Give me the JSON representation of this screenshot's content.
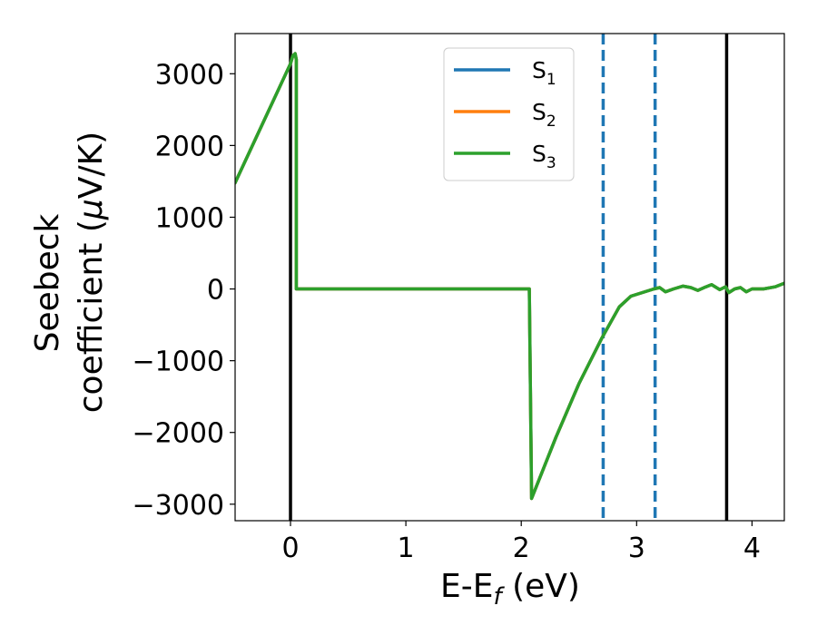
{
  "chart_data": {
    "type": "line",
    "xlabel": "E-E",
    "xlabel_sub": "f",
    "xlabel_unit": " (eV)",
    "ylabel_line1": "Seebeck",
    "ylabel_line2": "coefficient  (",
    "ylabel_mu": "μ",
    "ylabel_unit": "V/K)",
    "xlim": [
      -0.48,
      4.28
    ],
    "ylim": [
      -3230,
      3560
    ],
    "x_ticks": [
      {
        "value": 0,
        "label": "0"
      },
      {
        "value": 1,
        "label": "1"
      },
      {
        "value": 2,
        "label": "2"
      },
      {
        "value": 3,
        "label": "3"
      },
      {
        "value": 4,
        "label": "4"
      }
    ],
    "y_ticks": [
      {
        "value": 3000,
        "label": "3000"
      },
      {
        "value": 2000,
        "label": "2000"
      },
      {
        "value": 1000,
        "label": "1000"
      },
      {
        "value": 0,
        "label": "0"
      },
      {
        "value": -1000,
        "label": "−1000"
      },
      {
        "value": -2000,
        "label": "−2000"
      },
      {
        "value": -3000,
        "label": "−3000"
      }
    ],
    "legend_position": "upper center",
    "vertical_lines": [
      {
        "x": 0.0,
        "style": "solid",
        "color": "#000000"
      },
      {
        "x": 3.78,
        "style": "solid",
        "color": "#000000"
      },
      {
        "x": 2.71,
        "style": "dashed",
        "color": "#1f77b4"
      },
      {
        "x": 3.16,
        "style": "dashed",
        "color": "#1f77b4"
      }
    ],
    "series": [
      {
        "name": "S",
        "sub": "1",
        "color": "#1f77b4",
        "x": [
          -0.48,
          0.0,
          0.02,
          0.04,
          0.05,
          0.05,
          0.5,
          1.0,
          1.5,
          2.07,
          2.07,
          2.09,
          2.3,
          2.5,
          2.7,
          2.85,
          2.95,
          3.05,
          3.15,
          3.2,
          3.25,
          3.32,
          3.4,
          3.47,
          3.53,
          3.6,
          3.65,
          3.72,
          3.77,
          3.8,
          3.85,
          3.9,
          3.95,
          4.0,
          4.1,
          4.2,
          4.28
        ],
        "y": [
          1480,
          3140,
          3250,
          3280,
          3200,
          0,
          0,
          0,
          0,
          0,
          0,
          -2920,
          -2070,
          -1320,
          -680,
          -250,
          -100,
          -50,
          0,
          20,
          -40,
          0,
          40,
          20,
          -20,
          30,
          60,
          -10,
          30,
          -50,
          0,
          20,
          -40,
          0,
          0,
          30,
          80
        ]
      },
      {
        "name": "S",
        "sub": "2",
        "color": "#ff7f0e",
        "x": [
          -0.48,
          0.0,
          0.02,
          0.04,
          0.05,
          0.05,
          0.5,
          1.0,
          1.5,
          2.07,
          2.07,
          2.09,
          2.3,
          2.5,
          2.7,
          2.85,
          2.95,
          3.05,
          3.15,
          3.2,
          3.25,
          3.32,
          3.4,
          3.47,
          3.53,
          3.6,
          3.65,
          3.72,
          3.77,
          3.8,
          3.85,
          3.9,
          3.95,
          4.0,
          4.1,
          4.2,
          4.28
        ],
        "y": [
          1480,
          3140,
          3250,
          3280,
          3200,
          0,
          0,
          0,
          0,
          0,
          0,
          -2920,
          -2070,
          -1320,
          -680,
          -250,
          -100,
          -50,
          0,
          20,
          -40,
          0,
          40,
          20,
          -20,
          30,
          60,
          -10,
          30,
          -50,
          0,
          20,
          -40,
          0,
          0,
          30,
          80
        ]
      },
      {
        "name": "S",
        "sub": "3",
        "color": "#2ca02c",
        "x": [
          -0.48,
          0.0,
          0.02,
          0.04,
          0.05,
          0.05,
          0.5,
          1.0,
          1.5,
          2.07,
          2.07,
          2.09,
          2.3,
          2.5,
          2.7,
          2.85,
          2.95,
          3.05,
          3.15,
          3.2,
          3.25,
          3.32,
          3.4,
          3.47,
          3.53,
          3.6,
          3.65,
          3.72,
          3.77,
          3.8,
          3.85,
          3.9,
          3.95,
          4.0,
          4.1,
          4.2,
          4.28
        ],
        "y": [
          1480,
          3140,
          3250,
          3280,
          3200,
          0,
          0,
          0,
          0,
          0,
          0,
          -2920,
          -2070,
          -1320,
          -680,
          -250,
          -100,
          -50,
          0,
          20,
          -40,
          0,
          40,
          20,
          -20,
          30,
          60,
          -10,
          30,
          -50,
          0,
          20,
          -40,
          0,
          0,
          30,
          80
        ]
      }
    ]
  }
}
